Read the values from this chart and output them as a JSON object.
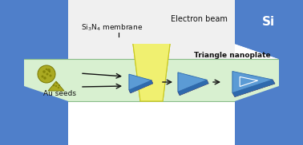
{
  "fig_width": 3.78,
  "fig_height": 1.82,
  "dpi": 100,
  "bg_white": "#ffffff",
  "si_color": "#4f7fca",
  "membrane_color": "#d8f0d0",
  "membrane_border": "#88bb88",
  "beam_color": "#f0f070",
  "beam_outline": "#c8c820",
  "blue_tri_color": "#5b9bd5",
  "blue_tri_dark": "#2e6aad",
  "blue_tri_mid": "#3a7fc0",
  "red_edge_color": "#cc2222",
  "red_edge_dark": "#881111",
  "au_color": "#aaaa22",
  "au_dark": "#777700",
  "arrow_color": "#111111",
  "text_color": "#111111",
  "white_area": "#f0f0f0",
  "label_si": "Si",
  "label_membrane": "Si$_3$N$_4$ membrane",
  "label_beam": "Electron beam",
  "label_seeds": "Au seeds",
  "label_triangle": "Triangle nanoplate"
}
